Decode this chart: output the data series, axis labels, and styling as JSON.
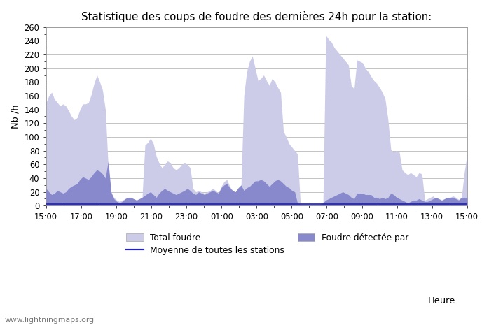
{
  "title": "Statistique des coups de foudre des dernières 24h pour la station:",
  "xlabel": "Heure",
  "ylabel": "Nb /h",
  "watermark": "www.lightningmaps.org",
  "ylim": [
    0,
    260
  ],
  "yticks": [
    0,
    20,
    40,
    60,
    80,
    100,
    120,
    140,
    160,
    180,
    200,
    220,
    240,
    260
  ],
  "xtick_labels": [
    "15:00",
    "17:00",
    "19:00",
    "21:00",
    "23:00",
    "01:00",
    "03:00",
    "05:00",
    "07:00",
    "09:00",
    "11:00",
    "13:00",
    "15:00"
  ],
  "total_foudre_color": "#cccce8",
  "detected_color": "#8888cc",
  "moyenne_color": "#2222bb",
  "background_color": "#ffffff",
  "grid_color": "#bbbbbb",
  "legend_labels": [
    "Total foudre",
    "Foudre détectée par",
    "Moyenne de toutes les stations"
  ],
  "total_foudre": [
    150,
    160,
    165,
    155,
    150,
    145,
    148,
    145,
    138,
    130,
    125,
    128,
    140,
    148,
    148,
    150,
    162,
    178,
    190,
    180,
    168,
    140,
    55,
    18,
    12,
    8,
    6,
    8,
    10,
    12,
    10,
    8,
    6,
    8,
    12,
    88,
    92,
    98,
    90,
    72,
    62,
    55,
    60,
    65,
    62,
    55,
    52,
    55,
    60,
    62,
    60,
    55,
    25,
    20,
    22,
    20,
    18,
    20,
    22,
    25,
    22,
    18,
    28,
    35,
    38,
    28,
    22,
    18,
    22,
    28,
    160,
    195,
    210,
    218,
    200,
    182,
    185,
    190,
    182,
    175,
    185,
    180,
    172,
    165,
    108,
    100,
    90,
    85,
    80,
    75,
    2,
    2,
    2,
    2,
    2,
    2,
    2,
    2,
    2,
    248,
    242,
    238,
    230,
    225,
    220,
    215,
    210,
    205,
    175,
    170,
    212,
    210,
    208,
    200,
    195,
    188,
    182,
    178,
    172,
    165,
    155,
    125,
    82,
    78,
    80,
    78,
    52,
    48,
    45,
    48,
    45,
    42,
    48,
    46,
    8,
    10,
    12,
    14,
    9,
    6,
    4,
    8,
    10,
    12,
    14,
    12,
    9,
    12,
    48,
    75
  ],
  "detected_foudre": [
    25,
    20,
    16,
    18,
    22,
    20,
    18,
    20,
    25,
    28,
    30,
    32,
    38,
    42,
    40,
    38,
    42,
    48,
    52,
    50,
    46,
    40,
    65,
    20,
    10,
    6,
    4,
    6,
    10,
    12,
    12,
    10,
    8,
    10,
    12,
    15,
    18,
    20,
    16,
    12,
    18,
    22,
    25,
    22,
    20,
    18,
    16,
    18,
    20,
    22,
    25,
    22,
    18,
    16,
    20,
    18,
    16,
    18,
    20,
    22,
    20,
    18,
    26,
    30,
    32,
    26,
    22,
    20,
    26,
    30,
    22,
    26,
    28,
    32,
    36,
    36,
    38,
    36,
    32,
    28,
    32,
    36,
    38,
    36,
    32,
    28,
    26,
    22,
    20,
    3,
    2,
    2,
    2,
    2,
    2,
    2,
    2,
    2,
    4,
    8,
    10,
    12,
    14,
    16,
    18,
    20,
    18,
    16,
    12,
    10,
    18,
    18,
    18,
    16,
    16,
    16,
    12,
    12,
    10,
    12,
    10,
    12,
    18,
    16,
    12,
    10,
    8,
    6,
    4,
    6,
    8,
    8,
    10,
    8,
    6,
    6,
    8,
    10,
    12,
    10,
    8,
    10,
    12,
    12,
    12,
    10,
    8,
    12,
    12,
    12
  ],
  "moyenne": [
    2,
    2,
    2,
    2,
    2,
    2,
    2,
    2,
    2,
    2,
    2,
    2,
    2,
    2,
    2,
    2,
    2,
    2,
    2,
    2,
    2,
    2,
    2,
    2,
    2,
    2,
    2,
    2,
    2,
    2,
    2,
    2,
    2,
    2,
    2,
    2,
    2,
    2,
    2,
    2,
    2,
    2,
    2,
    2,
    2,
    2,
    2,
    2,
    2,
    2,
    2,
    2,
    2,
    2,
    2,
    2,
    2,
    2,
    2,
    2,
    2,
    2,
    2,
    2,
    2,
    2,
    2,
    2,
    2,
    2,
    2,
    2,
    2,
    2,
    2,
    2,
    2,
    2,
    2,
    2,
    2,
    2,
    2,
    2,
    2,
    2,
    2,
    2,
    2,
    2,
    2,
    2,
    2,
    2,
    2,
    2,
    2,
    2,
    2,
    2,
    2,
    2,
    2,
    2,
    2,
    2,
    2,
    2,
    2,
    2,
    2,
    2,
    2,
    2,
    2,
    2,
    2,
    2,
    2,
    2,
    2,
    2,
    2,
    2,
    2,
    2,
    2,
    2,
    2,
    2,
    2,
    2,
    2,
    2,
    2,
    2,
    2,
    2,
    2,
    2,
    2,
    2,
    2,
    2,
    2,
    2,
    2,
    2,
    2,
    2
  ],
  "n_points": 150
}
